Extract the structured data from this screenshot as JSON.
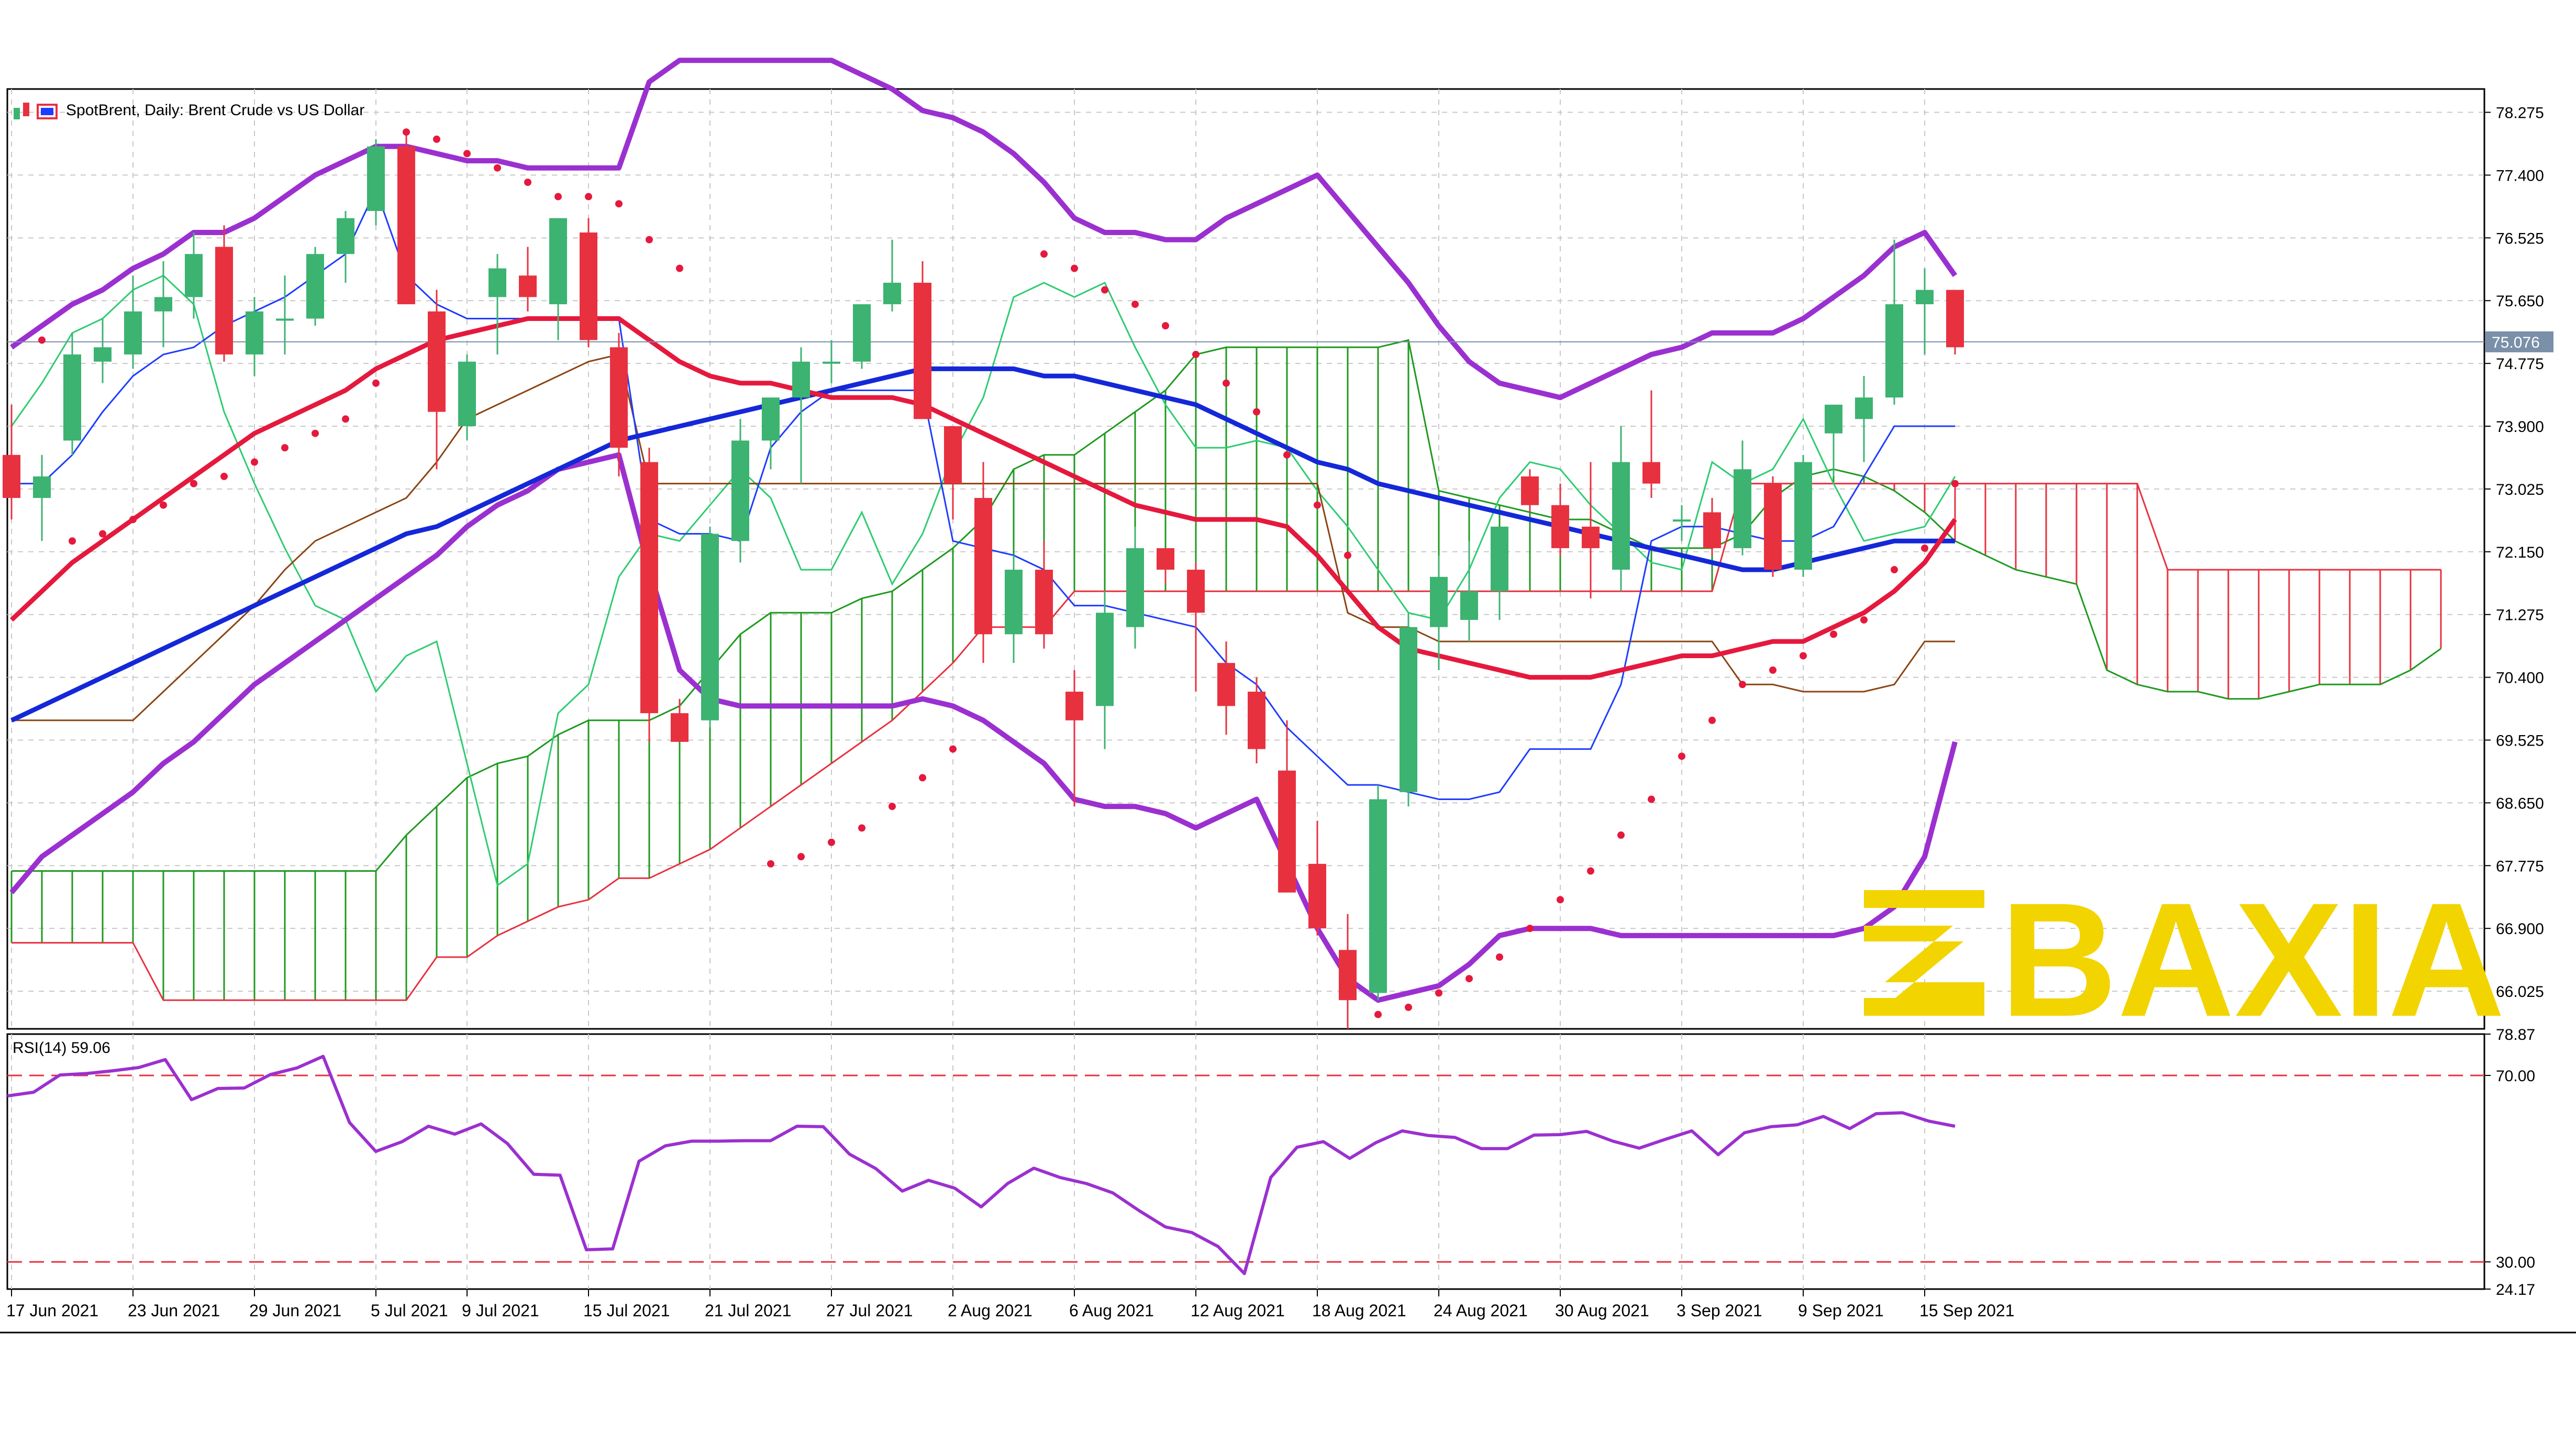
{
  "chart_title": "SpotBrent, Daily:  Brent Crude vs US Dollar",
  "current_price_label": "75.076",
  "watermark_text": "BAXIA",
  "watermark_color": "#F2D400",
  "colors": {
    "bull": "#3CB371",
    "bear": "#E8313F",
    "ma_fast": "#E5193D",
    "ma_slow": "#1428D8",
    "bollinger": "#9B30D0",
    "kumo_bull": "#1E9A1E",
    "kumo_bear": "#E8313F",
    "kijun": "#8B4513",
    "tenkan": "#1E3CFF",
    "chikou": "#2ECC71",
    "rsi": "#9B30D0",
    "rsi_levels": "#E8313F",
    "psar": "#E5193D"
  },
  "chart_data": [
    {
      "type": "candlestick",
      "title": "SpotBrent, Daily:  Brent Crude vs US Dollar",
      "ylim": [
        65.5,
        78.6
      ],
      "y_ticks": [
        "78.275",
        "77.400",
        "76.525",
        "75.650",
        "74.775",
        "73.900",
        "73.025",
        "72.150",
        "71.275",
        "70.400",
        "69.525",
        "68.650",
        "67.775",
        "66.900",
        "66.025"
      ],
      "x_ticks": [
        "17 Jun 2021",
        "23 Jun 2021",
        "29 Jun 2021",
        "5 Jul 2021",
        "9 Jul 2021",
        "15 Jul 2021",
        "21 Jul 2021",
        "27 Jul 2021",
        "2 Aug 2021",
        "6 Aug 2021",
        "12 Aug 2021",
        "18 Aug 2021",
        "24 Aug 2021",
        "30 Aug 2021",
        "3 Sep 2021",
        "9 Sep 2021",
        "15 Sep 2021"
      ],
      "candles": [
        {
          "o": 73.5,
          "h": 74.2,
          "l": 72.6,
          "c": 72.9
        },
        {
          "o": 72.9,
          "h": 73.5,
          "l": 72.3,
          "c": 73.2
        },
        {
          "o": 73.7,
          "h": 75.2,
          "l": 73.5,
          "c": 74.9
        },
        {
          "o": 74.8,
          "h": 75.4,
          "l": 74.5,
          "c": 75.0
        },
        {
          "o": 74.9,
          "h": 76.0,
          "l": 74.7,
          "c": 75.5
        },
        {
          "o": 75.5,
          "h": 76.2,
          "l": 75.0,
          "c": 75.7
        },
        {
          "o": 75.7,
          "h": 76.6,
          "l": 75.4,
          "c": 76.3
        },
        {
          "o": 76.4,
          "h": 76.7,
          "l": 74.8,
          "c": 74.9
        },
        {
          "o": 74.9,
          "h": 75.7,
          "l": 74.6,
          "c": 75.5
        },
        {
          "o": 75.4,
          "h": 76.0,
          "l": 74.9,
          "c": 75.4
        },
        {
          "o": 75.4,
          "h": 76.4,
          "l": 75.3,
          "c": 76.3
        },
        {
          "o": 76.3,
          "h": 76.9,
          "l": 75.9,
          "c": 76.8
        },
        {
          "o": 76.9,
          "h": 77.9,
          "l": 76.7,
          "c": 77.8
        },
        {
          "o": 77.8,
          "h": 78.0,
          "l": 75.6,
          "c": 75.6
        },
        {
          "o": 75.5,
          "h": 75.8,
          "l": 73.3,
          "c": 74.1
        },
        {
          "o": 73.9,
          "h": 74.9,
          "l": 73.7,
          "c": 74.8
        },
        {
          "o": 75.7,
          "h": 76.3,
          "l": 74.9,
          "c": 76.1
        },
        {
          "o": 76.0,
          "h": 76.4,
          "l": 75.5,
          "c": 75.7
        },
        {
          "o": 75.6,
          "h": 76.8,
          "l": 75.1,
          "c": 76.8
        },
        {
          "o": 76.6,
          "h": 76.8,
          "l": 75.0,
          "c": 75.1
        },
        {
          "o": 75.0,
          "h": 75.2,
          "l": 73.2,
          "c": 73.6
        },
        {
          "o": 73.4,
          "h": 73.6,
          "l": 69.5,
          "c": 69.9
        },
        {
          "o": 69.9,
          "h": 70.1,
          "l": 69.5,
          "c": 69.5
        },
        {
          "o": 69.8,
          "h": 72.5,
          "l": 69.7,
          "c": 72.4
        },
        {
          "o": 72.3,
          "h": 74.0,
          "l": 72.0,
          "c": 73.7
        },
        {
          "o": 73.7,
          "h": 74.3,
          "l": 73.3,
          "c": 74.3
        },
        {
          "o": 74.3,
          "h": 75.0,
          "l": 73.1,
          "c": 74.8
        },
        {
          "o": 74.8,
          "h": 75.1,
          "l": 74.5,
          "c": 74.8
        },
        {
          "o": 74.8,
          "h": 75.6,
          "l": 74.7,
          "c": 75.6
        },
        {
          "o": 75.6,
          "h": 76.5,
          "l": 75.5,
          "c": 75.9
        },
        {
          "o": 75.9,
          "h": 76.2,
          "l": 74.0,
          "c": 74.0
        },
        {
          "o": 73.9,
          "h": 73.9,
          "l": 72.6,
          "c": 73.1
        },
        {
          "o": 72.9,
          "h": 73.4,
          "l": 70.6,
          "c": 71.0
        },
        {
          "o": 71.0,
          "h": 72.1,
          "l": 70.6,
          "c": 71.9
        },
        {
          "o": 71.9,
          "h": 72.3,
          "l": 70.8,
          "c": 71.0
        },
        {
          "o": 70.2,
          "h": 70.5,
          "l": 68.6,
          "c": 69.8
        },
        {
          "o": 70.0,
          "h": 71.6,
          "l": 69.4,
          "c": 71.3
        },
        {
          "o": 71.1,
          "h": 72.5,
          "l": 70.8,
          "c": 72.2
        },
        {
          "o": 72.2,
          "h": 72.2,
          "l": 71.7,
          "c": 71.9
        },
        {
          "o": 71.9,
          "h": 72.0,
          "l": 70.2,
          "c": 71.3
        },
        {
          "o": 70.6,
          "h": 70.9,
          "l": 69.6,
          "c": 70.0
        },
        {
          "o": 70.2,
          "h": 70.4,
          "l": 69.2,
          "c": 69.4
        },
        {
          "o": 69.1,
          "h": 69.8,
          "l": 67.4,
          "c": 67.4
        },
        {
          "o": 67.8,
          "h": 68.4,
          "l": 66.8,
          "c": 66.9
        },
        {
          "o": 66.6,
          "h": 67.1,
          "l": 65.5,
          "c": 65.9
        },
        {
          "o": 66.0,
          "h": 68.9,
          "l": 65.9,
          "c": 68.7
        },
        {
          "o": 68.8,
          "h": 71.3,
          "l": 68.6,
          "c": 71.1
        },
        {
          "o": 71.1,
          "h": 72.1,
          "l": 70.5,
          "c": 71.8
        },
        {
          "o": 71.2,
          "h": 72.3,
          "l": 70.9,
          "c": 71.6
        },
        {
          "o": 71.6,
          "h": 72.4,
          "l": 71.2,
          "c": 72.5
        },
        {
          "o": 73.2,
          "h": 73.3,
          "l": 72.7,
          "c": 72.8
        },
        {
          "o": 72.8,
          "h": 73.1,
          "l": 72.1,
          "c": 72.2
        },
        {
          "o": 72.5,
          "h": 73.4,
          "l": 71.5,
          "c": 72.2
        },
        {
          "o": 71.9,
          "h": 73.9,
          "l": 71.6,
          "c": 73.4
        },
        {
          "o": 73.4,
          "h": 74.4,
          "l": 72.9,
          "c": 73.1
        },
        {
          "o": 72.6,
          "h": 72.8,
          "l": 72.3,
          "c": 72.6
        },
        {
          "o": 72.7,
          "h": 72.9,
          "l": 72.1,
          "c": 72.2
        },
        {
          "o": 72.2,
          "h": 73.7,
          "l": 72.1,
          "c": 73.3
        },
        {
          "o": 73.1,
          "h": 73.2,
          "l": 71.8,
          "c": 71.9
        },
        {
          "o": 71.9,
          "h": 73.5,
          "l": 71.8,
          "c": 73.4
        },
        {
          "o": 73.8,
          "h": 74.1,
          "l": 73.2,
          "c": 74.2
        },
        {
          "o": 74.0,
          "h": 74.6,
          "l": 73.4,
          "c": 74.3
        },
        {
          "o": 74.3,
          "h": 76.5,
          "l": 74.2,
          "c": 75.6
        },
        {
          "o": 75.6,
          "h": 76.1,
          "l": 74.9,
          "c": 75.8
        },
        {
          "o": 75.8,
          "h": 75.8,
          "l": 74.9,
          "c": 75.0
        }
      ],
      "moving_average_fast": [
        71.2,
        71.6,
        72.0,
        72.3,
        72.6,
        72.9,
        73.2,
        73.5,
        73.8,
        74.0,
        74.2,
        74.4,
        74.7,
        74.9,
        75.1,
        75.2,
        75.3,
        75.4,
        75.4,
        75.4,
        75.4,
        75.1,
        74.8,
        74.6,
        74.5,
        74.5,
        74.4,
        74.3,
        74.3,
        74.3,
        74.2,
        74.0,
        73.8,
        73.6,
        73.4,
        73.2,
        73.0,
        72.8,
        72.7,
        72.6,
        72.6,
        72.6,
        72.5,
        72.1,
        71.6,
        71.1,
        70.8,
        70.7,
        70.6,
        70.5,
        70.4,
        70.4,
        70.4,
        70.5,
        70.6,
        70.7,
        70.7,
        70.8,
        70.9,
        70.9,
        71.1,
        71.3,
        71.6,
        72.0,
        72.6
      ],
      "moving_average_slow": [
        69.8,
        70.0,
        70.2,
        70.4,
        70.6,
        70.8,
        71.0,
        71.2,
        71.4,
        71.6,
        71.8,
        72.0,
        72.2,
        72.4,
        72.5,
        72.7,
        72.9,
        73.1,
        73.3,
        73.5,
        73.7,
        73.8,
        73.9,
        74.0,
        74.1,
        74.2,
        74.3,
        74.4,
        74.5,
        74.6,
        74.7,
        74.7,
        74.7,
        74.7,
        74.6,
        74.6,
        74.5,
        74.4,
        74.3,
        74.2,
        74.0,
        73.8,
        73.6,
        73.4,
        73.3,
        73.1,
        73.0,
        72.9,
        72.8,
        72.7,
        72.6,
        72.5,
        72.4,
        72.3,
        72.2,
        72.1,
        72.0,
        71.9,
        71.9,
        72.0,
        72.1,
        72.2,
        72.3,
        72.3,
        72.3
      ],
      "bollinger_upper": [
        75.0,
        75.3,
        75.6,
        75.8,
        76.1,
        76.3,
        76.6,
        76.6,
        76.8,
        77.1,
        77.4,
        77.6,
        77.8,
        77.8,
        77.7,
        77.6,
        77.6,
        77.5,
        77.5,
        77.5,
        77.5,
        78.7,
        79.0,
        79.0,
        79.0,
        79.0,
        79.0,
        79.0,
        78.8,
        78.6,
        78.3,
        78.2,
        78.0,
        77.7,
        77.3,
        76.8,
        76.6,
        76.6,
        76.5,
        76.5,
        76.8,
        77.0,
        77.2,
        77.4,
        76.9,
        76.4,
        75.9,
        75.3,
        74.8,
        74.5,
        74.4,
        74.3,
        74.5,
        74.7,
        74.9,
        75.0,
        75.2,
        75.2,
        75.2,
        75.4,
        75.7,
        76.0,
        76.4,
        76.6,
        76.0
      ],
      "bollinger_lower": [
        67.4,
        67.9,
        68.2,
        68.5,
        68.8,
        69.2,
        69.5,
        69.9,
        70.3,
        70.6,
        70.9,
        71.2,
        71.5,
        71.8,
        72.1,
        72.5,
        72.8,
        73.0,
        73.3,
        73.4,
        73.5,
        71.9,
        70.5,
        70.1,
        70.0,
        70.0,
        70.0,
        70.0,
        70.0,
        70.0,
        70.1,
        70.0,
        69.8,
        69.5,
        69.2,
        68.7,
        68.6,
        68.6,
        68.5,
        68.3,
        68.5,
        68.7,
        67.8,
        66.9,
        66.2,
        65.9,
        66.0,
        66.1,
        66.4,
        66.8,
        66.9,
        66.9,
        66.9,
        66.8,
        66.8,
        66.8,
        66.8,
        66.8,
        66.8,
        66.8,
        66.8,
        66.9,
        67.2,
        67.9,
        69.5
      ],
      "psar": [
        null,
        75.1,
        72.3,
        72.4,
        72.6,
        72.8,
        73.1,
        73.2,
        73.4,
        73.6,
        73.8,
        74.0,
        74.5,
        78.0,
        77.9,
        77.7,
        77.5,
        77.3,
        77.1,
        77.1,
        77.0,
        76.5,
        76.1,
        null,
        null,
        67.8,
        67.9,
        68.1,
        68.3,
        68.6,
        69.0,
        69.4,
        null,
        null,
        76.3,
        76.1,
        75.8,
        75.6,
        75.3,
        74.9,
        74.5,
        74.1,
        73.5,
        72.8,
        72.1,
        65.7,
        65.8,
        66.0,
        66.2,
        66.5,
        66.9,
        67.3,
        67.7,
        68.2,
        68.7,
        69.3,
        69.8,
        70.3,
        70.5,
        70.7,
        71.0,
        71.2,
        71.9,
        72.2,
        73.1
      ],
      "kumo_span_a": [
        67.7,
        67.7,
        67.7,
        67.7,
        67.7,
        67.7,
        67.7,
        67.7,
        67.7,
        67.7,
        67.7,
        67.7,
        67.7,
        68.2,
        68.6,
        69.0,
        69.2,
        69.3,
        69.6,
        69.8,
        69.8,
        69.8,
        70.0,
        70.5,
        71.0,
        71.3,
        71.3,
        71.3,
        71.5,
        71.6,
        71.9,
        72.2,
        72.6,
        73.3,
        73.5,
        73.5,
        73.8,
        74.1,
        74.4,
        74.9,
        75.0,
        75.0,
        75.0,
        75.0,
        75.0,
        75.0,
        75.1,
        73.0,
        72.9,
        72.8,
        72.7,
        72.6,
        72.6,
        72.4,
        72.2,
        72.2,
        72.2,
        72.4,
        72.9,
        73.2,
        73.3,
        73.2,
        73.0,
        72.7,
        72.3,
        72.1,
        71.9,
        71.8,
        71.7,
        70.5,
        70.3,
        70.2,
        70.2,
        70.1,
        70.1,
        70.2,
        70.3,
        70.3,
        70.3,
        70.5,
        70.8
      ],
      "kumo_span_b": [
        66.7,
        66.7,
        66.7,
        66.7,
        66.7,
        65.9,
        65.9,
        65.9,
        65.9,
        65.9,
        65.9,
        65.9,
        65.9,
        65.9,
        66.5,
        66.5,
        66.8,
        67.0,
        67.2,
        67.3,
        67.6,
        67.6,
        67.8,
        68.0,
        68.3,
        68.6,
        68.9,
        69.2,
        69.5,
        69.8,
        70.2,
        70.6,
        71.1,
        71.1,
        71.1,
        71.6,
        71.6,
        71.6,
        71.6,
        71.6,
        71.6,
        71.6,
        71.6,
        71.6,
        71.6,
        71.6,
        71.6,
        71.6,
        71.6,
        71.6,
        71.6,
        71.6,
        71.6,
        71.6,
        71.6,
        71.6,
        71.6,
        73.1,
        73.1,
        73.1,
        73.1,
        73.1,
        73.1,
        73.1,
        73.1,
        73.1,
        73.1,
        73.1,
        73.1,
        73.1,
        73.1,
        71.9,
        71.9,
        71.9,
        71.9,
        71.9,
        71.9,
        71.9,
        71.9,
        71.9,
        71.9
      ],
      "kijun": [
        69.8,
        69.8,
        69.8,
        69.8,
        69.8,
        70.2,
        70.6,
        71.0,
        71.4,
        71.9,
        72.3,
        72.5,
        72.7,
        72.9,
        73.4,
        74.0,
        74.2,
        74.4,
        74.6,
        74.8,
        74.9,
        73.1,
        73.1,
        73.1,
        73.1,
        73.1,
        73.1,
        73.1,
        73.1,
        73.1,
        73.1,
        73.1,
        73.1,
        73.1,
        73.1,
        73.1,
        73.1,
        73.1,
        73.1,
        73.1,
        73.1,
        73.1,
        73.1,
        73.1,
        71.3,
        71.1,
        71.1,
        70.9,
        70.9,
        70.9,
        70.9,
        70.9,
        70.9,
        70.9,
        70.9,
        70.9,
        70.9,
        70.3,
        70.3,
        70.2,
        70.2,
        70.2,
        70.3,
        70.9,
        70.9
      ],
      "tenkan": [
        73.1,
        73.1,
        73.5,
        74.1,
        74.6,
        74.9,
        75.0,
        75.3,
        75.5,
        75.7,
        76.0,
        76.3,
        77.2,
        76.0,
        75.6,
        75.4,
        75.4,
        75.4,
        75.4,
        75.4,
        75.4,
        72.6,
        72.4,
        72.4,
        72.3,
        73.6,
        74.1,
        74.4,
        74.4,
        74.4,
        74.4,
        72.3,
        72.2,
        72.1,
        71.9,
        71.4,
        71.4,
        71.3,
        71.2,
        71.1,
        70.6,
        70.3,
        69.7,
        69.3,
        68.9,
        68.9,
        68.8,
        68.7,
        68.7,
        68.8,
        69.4,
        69.4,
        69.4,
        70.3,
        72.3,
        72.5,
        72.5,
        72.4,
        72.3,
        72.3,
        72.5,
        73.2,
        73.9,
        73.9,
        73.9
      ],
      "chikou": [
        73.9,
        74.5,
        75.2,
        75.4,
        75.8,
        76.0,
        75.6,
        74.1,
        73.1,
        72.2,
        71.4,
        71.2,
        70.2,
        70.7,
        70.9,
        69.2,
        67.5,
        67.8,
        69.9,
        70.3,
        71.8,
        72.4,
        72.3,
        72.8,
        73.3,
        72.9,
        71.9,
        71.9,
        72.7,
        71.7,
        72.4,
        73.5,
        74.3,
        75.7,
        75.9,
        75.7,
        75.9,
        75.0,
        74.2,
        73.6,
        73.6,
        73.7,
        73.6,
        73.0,
        72.5,
        71.9,
        71.3,
        71.2,
        71.9,
        72.9,
        73.4,
        73.3,
        72.8,
        72.4,
        72.0,
        71.9,
        73.4,
        73.1,
        73.3,
        74.0,
        73.1,
        72.3,
        72.4,
        72.5,
        73.2
      ],
      "price_line": 75.076
    },
    {
      "type": "line",
      "title": "RSI(14) 59.06",
      "ylim": [
        24.17,
        78.87
      ],
      "y_ticks": [
        "78.87",
        "70.00",
        "30.00",
        "24.17"
      ],
      "levels": [
        70,
        30
      ],
      "values": [
        65.6,
        66.4,
        70.1,
        70.4,
        71.0,
        71.7,
        73.4,
        64.8,
        67.2,
        67.3,
        70.2,
        71.6,
        74.1,
        59.9,
        53.7,
        55.8,
        59.1,
        57.4,
        59.6,
        55.4,
        48.8,
        48.6,
        32.6,
        32.8,
        51.6,
        54.9,
        55.9,
        55.9,
        56.0,
        56.0,
        59.1,
        59.0,
        53.1,
        50.0,
        45.2,
        47.5,
        45.8,
        41.8,
        46.8,
        50.1,
        48.1,
        46.8,
        44.8,
        41.0,
        37.5,
        36.3,
        33.3,
        27.5,
        48.1,
        54.6,
        55.8,
        52.2,
        55.6,
        58.1,
        57.1,
        56.7,
        54.3,
        54.3,
        57.2,
        57.3,
        58.0,
        55.9,
        54.4,
        56.3,
        58.1,
        53.0,
        57.7,
        59.0,
        59.4,
        61.2,
        58.6,
        61.8,
        62.0,
        60.2,
        59.1
      ]
    }
  ]
}
